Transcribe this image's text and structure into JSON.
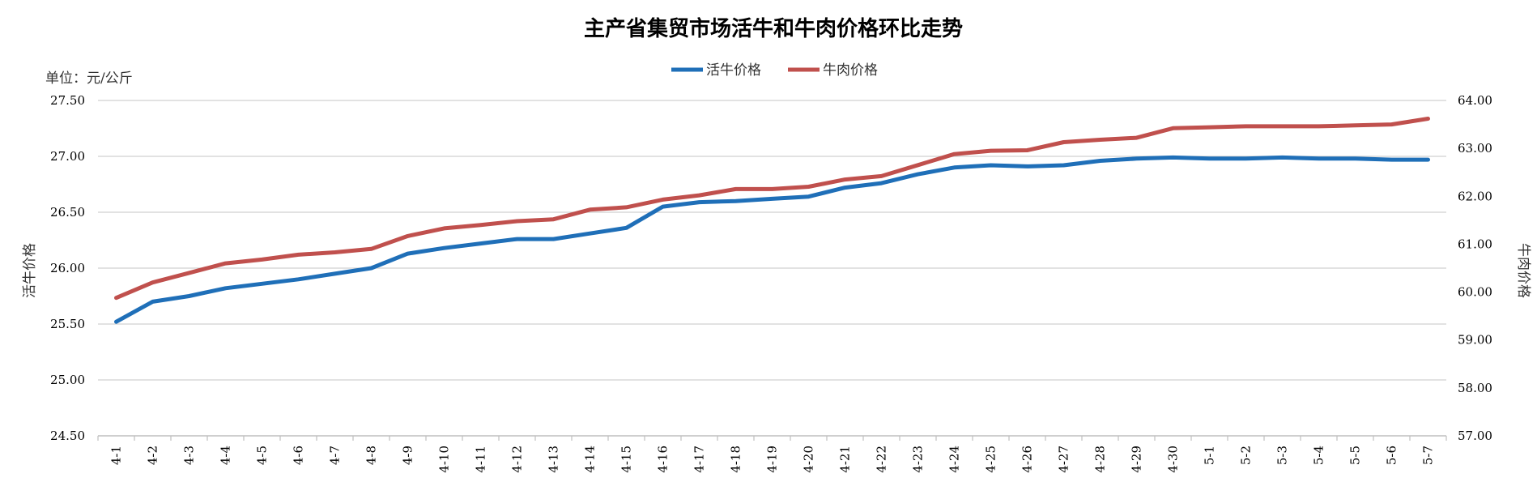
{
  "chart_data": {
    "type": "line",
    "title": "主产省集贸市场活牛和牛肉价格环比走势",
    "unit_label": "单位：元/公斤",
    "y_left_label": "活牛价格",
    "y_right_label": "牛肉价格",
    "y_left_lim": [
      24.5,
      27.5
    ],
    "y_right_lim": [
      57.0,
      64.0
    ],
    "y_left_ticks": [
      "24.50",
      "25.00",
      "25.50",
      "26.00",
      "26.50",
      "27.00",
      "27.50"
    ],
    "y_right_ticks": [
      "57.00",
      "58.00",
      "59.00",
      "60.00",
      "61.00",
      "62.00",
      "63.00",
      "64.00"
    ],
    "grid": true,
    "legend_position": "top-center",
    "categories": [
      "4-1",
      "4-2",
      "4-3",
      "4-4",
      "4-5",
      "4-6",
      "4-7",
      "4-8",
      "4-9",
      "4-10",
      "4-11",
      "4-12",
      "4-13",
      "4-14",
      "4-15",
      "4-16",
      "4-17",
      "4-18",
      "4-19",
      "4-20",
      "4-21",
      "4-22",
      "4-23",
      "4-24",
      "4-25",
      "4-26",
      "4-27",
      "4-28",
      "4-29",
      "4-30",
      "5-1",
      "5-2",
      "5-3",
      "5-4",
      "5-5",
      "5-6",
      "5-7"
    ],
    "series": [
      {
        "name": "活牛价格",
        "axis": "left",
        "color": "#1f6fb8",
        "values": [
          25.52,
          25.7,
          25.75,
          25.82,
          25.86,
          25.9,
          25.95,
          26.0,
          26.13,
          26.18,
          26.22,
          26.26,
          26.26,
          26.31,
          26.36,
          26.55,
          26.59,
          26.6,
          26.62,
          26.64,
          26.72,
          26.76,
          26.84,
          26.9,
          26.92,
          26.91,
          26.92,
          26.96,
          26.98,
          26.99,
          26.98,
          26.98,
          26.99,
          26.98,
          26.98,
          26.97,
          26.97
        ]
      },
      {
        "name": "牛肉价格",
        "axis": "right",
        "color": "#c0504d",
        "values": [
          59.88,
          60.2,
          60.4,
          60.6,
          60.68,
          60.78,
          60.83,
          60.9,
          61.17,
          61.33,
          61.4,
          61.48,
          61.52,
          61.72,
          61.77,
          61.93,
          62.02,
          62.15,
          62.15,
          62.2,
          62.35,
          62.42,
          62.65,
          62.88,
          62.95,
          62.96,
          63.13,
          63.18,
          63.22,
          63.42,
          63.44,
          63.46,
          63.46,
          63.46,
          63.48,
          63.5,
          63.62
        ]
      }
    ]
  }
}
